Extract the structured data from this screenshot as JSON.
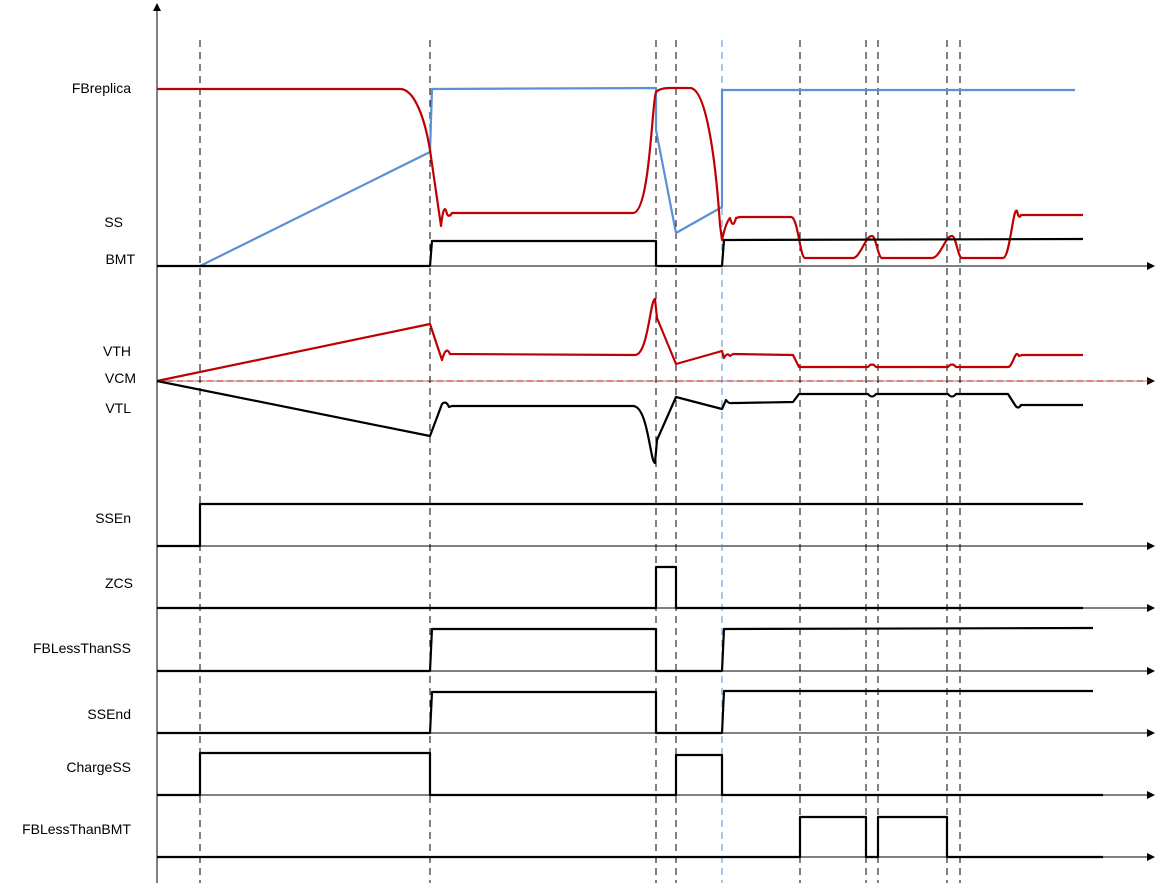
{
  "signals": {
    "fbreplica": "FBreplica",
    "ss": "SS",
    "bmt": "BMT",
    "vth": "VTH",
    "vcm": "VCM",
    "vtl": "VTL",
    "ssen": "SSEn",
    "zcs": "ZCS",
    "fblessthanss": "FBLessThanSS",
    "ssend": "SSEnd",
    "chargess": "ChargeSS",
    "fblessthanbmt": "FBLessThanBMT"
  },
  "colors": {
    "red_trace": "#c00000",
    "blue_trace": "#5b8fd6",
    "black_trace": "#000000"
  }
}
